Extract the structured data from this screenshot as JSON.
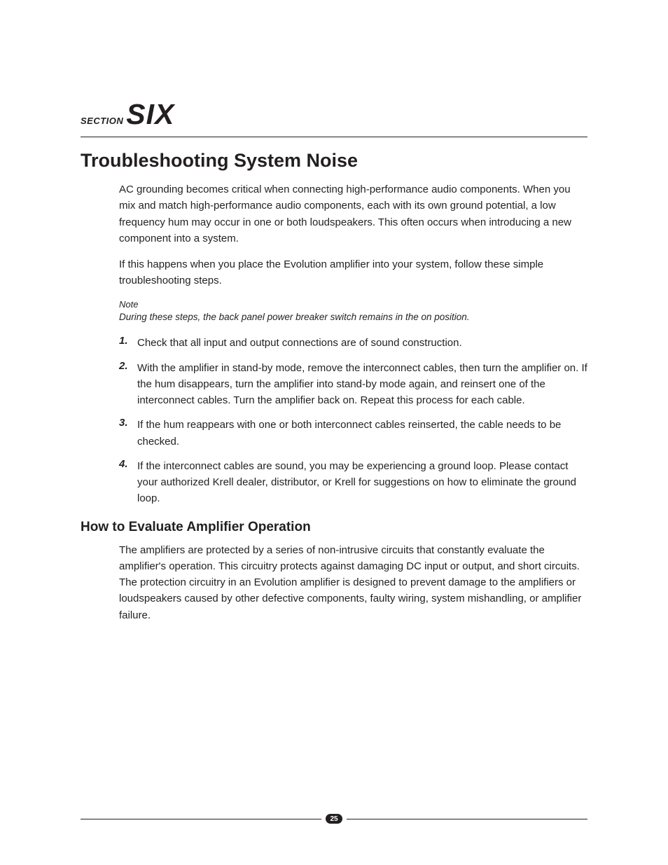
{
  "section": {
    "label": "SECTION",
    "number": "SIX"
  },
  "title": "Troubleshooting System Noise",
  "intro": [
    "AC grounding becomes critical when connecting high-performance audio components. When you mix and match high-performance audio components, each with its own ground potential, a low frequency hum may occur in one or both loudspeakers. This often occurs when introducing a new component into a system.",
    "If this happens when you place the Evolution amplifier into your system, follow these simple troubleshooting steps."
  ],
  "note": {
    "label": "Note",
    "text": "During these steps, the back panel power breaker switch remains in the on position."
  },
  "steps": [
    {
      "n": "1.",
      "t": "Check that all input and output connections are of sound construction."
    },
    {
      "n": "2.",
      "t": "With the amplifier in stand-by mode, remove the interconnect cables, then turn the amplifier on. If the hum disappears, turn the amplifier into stand-by mode again, and reinsert one of the interconnect cables. Turn the amplifier back on. Repeat this process for each cable."
    },
    {
      "n": "3.",
      "t": "If the hum reappears with one or both interconnect cables reinserted, the cable needs to be checked."
    },
    {
      "n": "4.",
      "t": "If the interconnect cables are sound, you may be experiencing a ground loop. Please contact your authorized Krell dealer, distributor, or Krell for suggestions on how to eliminate the ground loop."
    }
  ],
  "sub": {
    "title": "How to Evaluate Amplifier Operation",
    "body": "The amplifiers are protected by a series of non-intrusive circuits that constantly evaluate the amplifier's operation. This circuitry protects against damaging DC input or output, and short circuits. The protection circuitry in an Evolution amplifier is designed to prevent damage to the amplifiers or loudspeakers caused by other defective components, faulty wiring, system mishandling, or amplifier failure."
  },
  "page_number": "25"
}
